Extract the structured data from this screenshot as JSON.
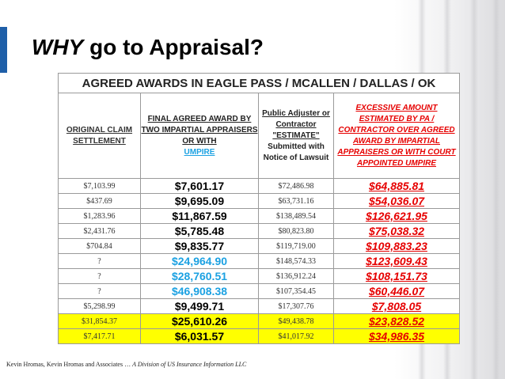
{
  "slide": {
    "title_emph": "WHY",
    "title_rest": " go to Appraisal?",
    "footer_left": "Kevin Hromas, Kevin Hromas and Associates … ",
    "footer_italic": "A Division of US Insurance Information LLC",
    "accent_color": "#1f5fa8"
  },
  "table": {
    "caption": "AGREED AWARDS IN EAGLE PASS / MCALLEN / DALLAS / OK",
    "headers": {
      "col1": "ORIGINAL CLAIM SETTLEMENT",
      "col2_a": "FINAL AGREED AWARD BY TWO IMPARTIAL APPRAISERS OR WITH",
      "col2_b": "UMPIRE",
      "col3_a": "Public Adjuster or Contractor \"ESTIMATE\"",
      "col3_b": "Submitted with Notice of Lawsuit",
      "col4": "EXCESSIVE AMOUNT ESTIMATED BY PA / CONTRACTOR OVER AGREED AWARD BY IMPARTIAL APPRAISERS OR WITH COURT APPOINTED UMPIRE"
    },
    "colors": {
      "umpire_blue": "#1ba1e2",
      "excess_red": "#e60000",
      "highlight": "#ffff00"
    },
    "rows": [
      {
        "original": "$7,103.99",
        "award": "$7,601.17",
        "estimate": "$72,486.98",
        "excess": "$64,885.81",
        "award_blue": false,
        "highlight": false
      },
      {
        "original": "$437.69",
        "award": "$9,695.09",
        "estimate": "$63,731.16",
        "excess": "$54,036.07",
        "award_blue": false,
        "highlight": false
      },
      {
        "original": "$1,283.96",
        "award": "$11,867.59",
        "estimate": "$138,489.54",
        "excess": "$126,621.95",
        "award_blue": false,
        "highlight": false
      },
      {
        "original": "$2,431.76",
        "award": "$5,785.48",
        "estimate": "$80,823.80",
        "excess": "$75,038.32",
        "award_blue": false,
        "highlight": false
      },
      {
        "original": "$704.84",
        "award": "$9,835.77",
        "estimate": "$119,719.00",
        "excess": "$109,883.23",
        "award_blue": false,
        "highlight": false
      },
      {
        "original": "?",
        "award": "$24,964.90",
        "estimate": "$148,574.33",
        "excess": "$123,609.43",
        "award_blue": true,
        "highlight": false
      },
      {
        "original": "?",
        "award": "$28,760.51",
        "estimate": "$136,912.24",
        "excess": "$108,151.73",
        "award_blue": true,
        "highlight": false
      },
      {
        "original": "?",
        "award": "$46,908.38",
        "estimate": "$107,354.45",
        "excess": "$60,446.07",
        "award_blue": true,
        "highlight": false
      },
      {
        "original": "$5,298.99",
        "award": "$9,499.71",
        "estimate": "$17,307.76",
        "excess": "$7,808.05",
        "award_blue": false,
        "highlight": false
      },
      {
        "original": "$31,854.37",
        "award": "$25,610.26",
        "estimate": "$49,438.78",
        "excess": "$23,828.52",
        "award_blue": false,
        "highlight": true
      },
      {
        "original": "$7,417.71",
        "award": "$6,031.57",
        "estimate": "$41,017.92",
        "excess": "$34,986.35",
        "award_blue": false,
        "highlight": true
      }
    ]
  }
}
